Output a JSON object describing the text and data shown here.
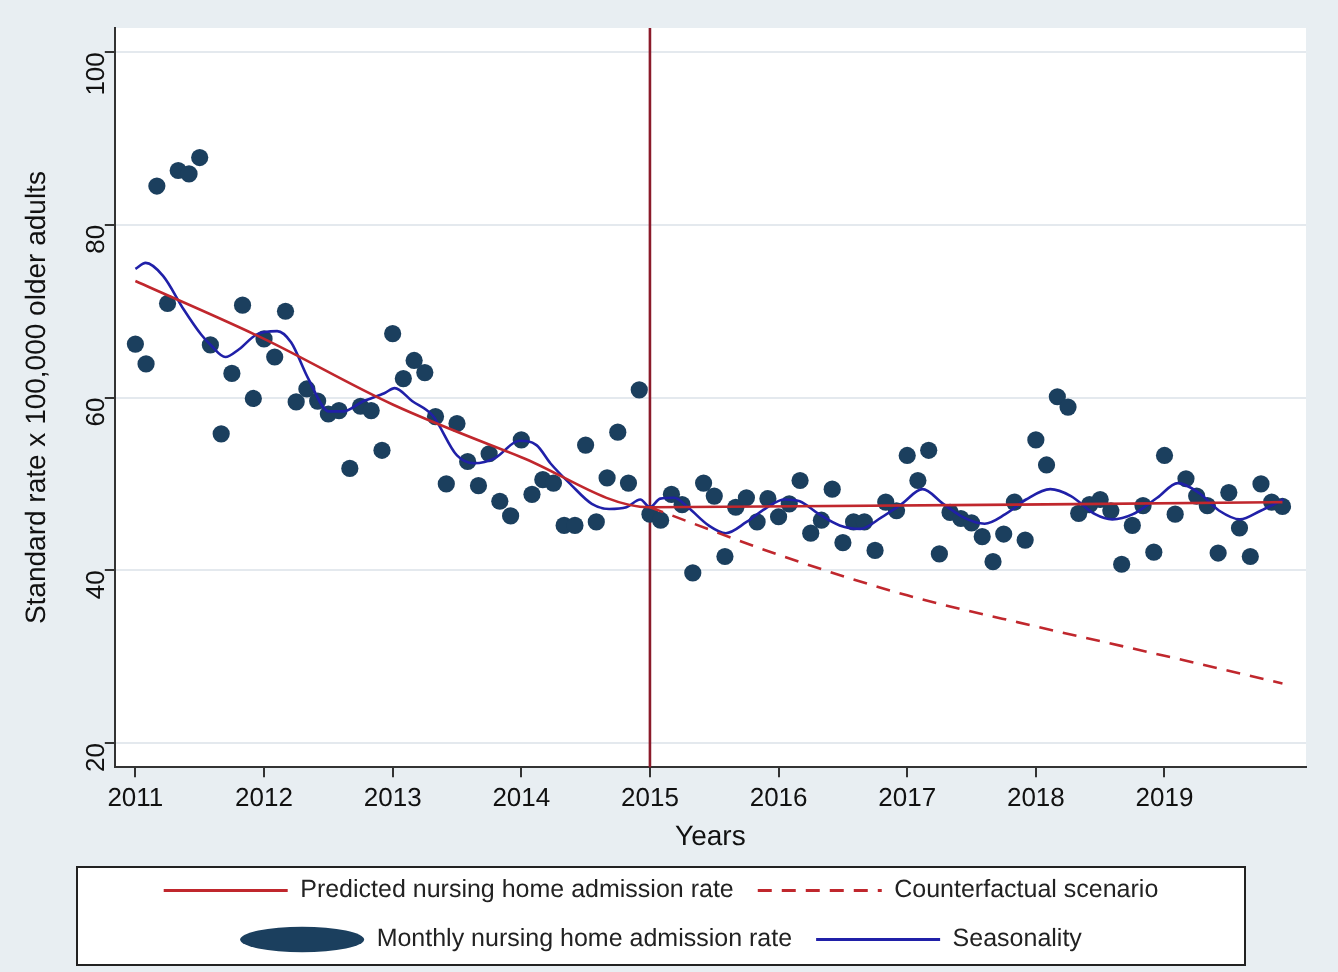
{
  "chart_data": {
    "type": "scatter",
    "xlabel": "Years",
    "ylabel": "Standard rate x 100,000 older adults",
    "xlim": [
      2010.84,
      2020.1
    ],
    "xticks": [
      2011,
      2012,
      2013,
      2014,
      2015,
      2016,
      2017,
      2018,
      2019
    ],
    "ylim": [
      17.2,
      102.8
    ],
    "yticks": [
      20,
      40,
      60,
      80,
      100
    ],
    "grid": "y",
    "legend": "bottom",
    "ref_lines": [
      {
        "axis": "x",
        "value": 2015,
        "color": "#8b1a2a"
      }
    ],
    "series": [
      {
        "name": "Predicted nursing home admission rate",
        "type": "line",
        "color": "#c0272d",
        "marker": "none",
        "line_style": "solid",
        "x": [
          2011,
          2012,
          2013,
          2014,
          2015,
          2019.917
        ],
        "values": [
          73.5,
          66.8,
          59.2,
          53.1,
          47.3,
          47.9
        ]
      },
      {
        "name": "Counterfactual scenario",
        "type": "line",
        "color": "#c0272d",
        "marker": "none",
        "line_style": "dashed",
        "x": [
          2015,
          2016,
          2017,
          2018,
          2019,
          2019.917
        ],
        "values": [
          47.3,
          41.8,
          37.1,
          33.5,
          30.1,
          26.9
        ]
      },
      {
        "name": "Monthly nursing home admission rate",
        "type": "scatter",
        "color": "#1b3f5e",
        "marker": "circle",
        "x": [
          2011,
          2011.083,
          2011.167,
          2011.25,
          2011.333,
          2011.417,
          2011.5,
          2011.583,
          2011.667,
          2011.75,
          2011.833,
          2011.917,
          2012,
          2012.083,
          2012.167,
          2012.25,
          2012.333,
          2012.417,
          2012.5,
          2012.583,
          2012.667,
          2012.75,
          2012.833,
          2012.917,
          2013,
          2013.083,
          2013.167,
          2013.25,
          2013.333,
          2013.417,
          2013.5,
          2013.583,
          2013.667,
          2013.75,
          2013.833,
          2013.917,
          2014,
          2014.083,
          2014.167,
          2014.25,
          2014.333,
          2014.417,
          2014.5,
          2014.583,
          2014.667,
          2014.75,
          2014.833,
          2014.917,
          2015,
          2015.083,
          2015.167,
          2015.25,
          2015.333,
          2015.417,
          2015.5,
          2015.583,
          2015.667,
          2015.75,
          2015.833,
          2015.917,
          2016,
          2016.083,
          2016.167,
          2016.25,
          2016.333,
          2016.417,
          2016.5,
          2016.583,
          2016.667,
          2016.75,
          2016.833,
          2016.917,
          2017,
          2017.083,
          2017.167,
          2017.25,
          2017.333,
          2017.417,
          2017.5,
          2017.583,
          2017.667,
          2017.75,
          2017.833,
          2017.917,
          2018,
          2018.083,
          2018.167,
          2018.25,
          2018.333,
          2018.417,
          2018.5,
          2018.583,
          2018.667,
          2018.75,
          2018.833,
          2018.917,
          2019,
          2019.083,
          2019.167,
          2019.25,
          2019.333,
          2019.417,
          2019.5,
          2019.583,
          2019.667,
          2019.75,
          2019.833,
          2019.917
        ],
        "values": [
          66.2,
          63.9,
          84.5,
          70.9,
          86.3,
          85.9,
          87.8,
          66.1,
          55.8,
          62.8,
          70.7,
          59.9,
          66.8,
          64.7,
          70.0,
          59.5,
          61.0,
          59.6,
          58.1,
          58.5,
          51.8,
          59.0,
          58.5,
          53.9,
          67.4,
          62.2,
          64.3,
          62.9,
          57.8,
          50.0,
          57.0,
          52.6,
          49.8,
          53.5,
          48.0,
          46.3,
          55.1,
          48.8,
          50.5,
          50.1,
          45.2,
          45.2,
          54.5,
          45.6,
          50.7,
          56.0,
          50.1,
          60.9,
          46.5,
          45.8,
          48.8,
          47.6,
          39.7,
          50.1,
          48.6,
          41.6,
          47.3,
          48.4,
          45.6,
          48.3,
          46.2,
          47.7,
          50.4,
          44.3,
          45.8,
          49.4,
          43.2,
          45.6,
          45.6,
          42.3,
          47.9,
          46.9,
          53.3,
          50.4,
          53.9,
          41.9,
          46.7,
          46.0,
          45.5,
          43.9,
          41.0,
          44.2,
          47.9,
          43.5,
          55.1,
          52.2,
          60.1,
          58.9,
          46.6,
          47.6,
          48.2,
          46.9,
          40.7,
          45.2,
          47.5,
          42.1,
          53.3,
          46.5,
          50.6,
          48.6,
          47.5,
          42.0,
          49.0,
          44.9,
          41.6,
          50.0,
          47.9,
          47.4
        ]
      },
      {
        "name": "Seasonality",
        "type": "line",
        "color": "#2020a8",
        "marker": "none",
        "line_style": "solid",
        "x": [
          2011,
          2011.08,
          2011.215,
          2011.376,
          2011.511,
          2011.591,
          2011.699,
          2011.806,
          2011.941,
          2012.102,
          2012.21,
          2012.344,
          2012.505,
          2012.613,
          2012.774,
          2012.935,
          2013.016,
          2013.151,
          2013.312,
          2013.5,
          2013.634,
          2013.796,
          2013.984,
          2014.118,
          2014.226,
          2014.387,
          2014.548,
          2014.683,
          2014.817,
          2014.925,
          2015,
          2015.08,
          2015.188,
          2015.295,
          2015.456,
          2015.59,
          2015.751,
          2015.912,
          2016.046,
          2016.164,
          2016.314,
          2016.475,
          2016.636,
          2016.797,
          2016.958,
          2017.119,
          2017.28,
          2017.441,
          2017.602,
          2017.763,
          2017.924,
          2018.112,
          2018.273,
          2018.46,
          2018.594,
          2018.755,
          2018.943,
          2019.104,
          2019.265,
          2019.426,
          2019.587,
          2019.748,
          2019.925
        ],
        "values": [
          74.9,
          75.6,
          74.1,
          70.2,
          67.3,
          66.0,
          64.7,
          65.6,
          67.3,
          67.7,
          66.4,
          62.2,
          58.4,
          58.4,
          59.6,
          60.5,
          61.1,
          59.6,
          57.9,
          53.3,
          52.4,
          53.0,
          55.0,
          54.5,
          52.4,
          49.9,
          47.7,
          47.1,
          47.3,
          48.2,
          47.3,
          48.3,
          48.4,
          47.3,
          45.2,
          44.3,
          45.6,
          47.3,
          48.2,
          48.0,
          46.5,
          45.2,
          44.8,
          46.1,
          47.7,
          49.4,
          47.7,
          46.1,
          45.4,
          46.5,
          48.2,
          49.4,
          48.6,
          46.5,
          45.9,
          46.5,
          48.4,
          50.1,
          49.0,
          46.9,
          45.9,
          46.9,
          48.2
        ]
      }
    ]
  }
}
